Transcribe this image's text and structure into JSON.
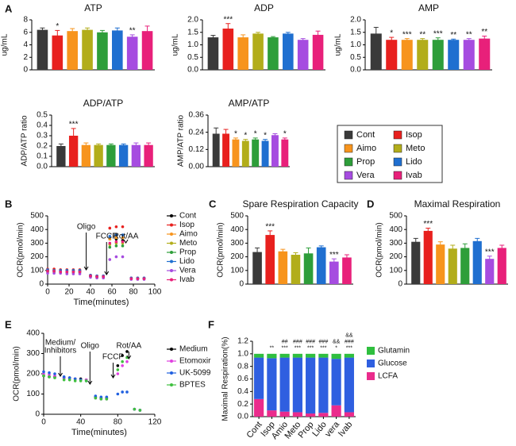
{
  "panel_labels": [
    "A",
    "B",
    "C",
    "D",
    "E",
    "F"
  ],
  "groups": {
    "names": [
      "Cont",
      "Isop",
      "Aimo",
      "Meto",
      "Prop",
      "Lido",
      "Vera",
      "Ivab"
    ],
    "colors": [
      "#3a3a3a",
      "#e8201e",
      "#f7941d",
      "#b2ad1a",
      "#2e9e3a",
      "#1f6fd0",
      "#a64ce0",
      "#e8207a"
    ]
  },
  "chart_data": [
    {
      "type": "bar",
      "title": "ATP",
      "ylabel": "ug/mL",
      "values": [
        6.4,
        5.5,
        6.2,
        6.4,
        6.0,
        6.3,
        5.3,
        6.2
      ],
      "errors": [
        0.3,
        0.8,
        0.4,
        0.3,
        0.3,
        0.4,
        0.3,
        0.8
      ],
      "stars": [
        null,
        "*",
        null,
        null,
        null,
        null,
        "**",
        null
      ],
      "ylim": [
        0,
        8
      ],
      "yticks": [
        0,
        2,
        4,
        6,
        8
      ]
    },
    {
      "type": "bar",
      "title": "ADP",
      "ylabel": "ug/mL",
      "values": [
        1.3,
        1.65,
        1.3,
        1.45,
        1.3,
        1.45,
        1.2,
        1.4
      ],
      "errors": [
        0.08,
        0.2,
        0.1,
        0.05,
        0.03,
        0.05,
        0.05,
        0.15
      ],
      "stars": [
        null,
        "***",
        null,
        null,
        null,
        null,
        null,
        null
      ],
      "ylim": [
        0,
        2
      ],
      "yticks": [
        {
          "value": 0,
          "label": "0.0"
        },
        0.5,
        {
          "value": 1,
          "label": "1.0"
        },
        1.5,
        {
          "value": 2,
          "label": "2.0"
        }
      ]
    },
    {
      "type": "bar",
      "title": "AMP",
      "ylabel": "ug/mL",
      "values": [
        1.45,
        1.2,
        1.2,
        1.2,
        1.2,
        1.2,
        1.2,
        1.25
      ],
      "errors": [
        0.25,
        0.1,
        0.05,
        0.05,
        0.08,
        0.03,
        0.05,
        0.1
      ],
      "stars": [
        null,
        "*",
        "***",
        "**",
        "***",
        "**",
        "**",
        "**"
      ],
      "ylim": [
        0,
        2
      ],
      "yticks": [
        {
          "value": 0,
          "label": "0.0"
        },
        0.5,
        {
          "value": 1,
          "label": "1.0"
        },
        1.5,
        {
          "value": 2,
          "label": "2.0"
        }
      ]
    },
    {
      "type": "bar",
      "title": "ADP/ATP",
      "ylabel": "ADP/ATP ratio",
      "values": [
        0.2,
        0.3,
        0.21,
        0.21,
        0.21,
        0.21,
        0.21,
        0.21
      ],
      "errors": [
        0.02,
        0.07,
        0.02,
        0.01,
        0.01,
        0.01,
        0.02,
        0.02
      ],
      "stars": [
        null,
        "***",
        null,
        null,
        null,
        null,
        null,
        null
      ],
      "ylim": [
        0,
        0.5
      ],
      "yticks": [
        {
          "value": 0,
          "label": "0.0"
        },
        0.1,
        0.2,
        0.3,
        0.4,
        0.5
      ]
    },
    {
      "type": "bar",
      "title": "AMP/ATP",
      "ylabel": "AMP/ATP ratio",
      "values": [
        0.23,
        0.23,
        0.19,
        0.18,
        0.19,
        0.18,
        0.22,
        0.19
      ],
      "errors": [
        0.04,
        0.03,
        0.01,
        0.01,
        0.01,
        0.01,
        0.01,
        0.01
      ],
      "stars": [
        null,
        null,
        "*",
        "*",
        "*",
        "*",
        null,
        "*"
      ],
      "ylim": [
        0,
        0.36
      ],
      "yticks": [
        {
          "value": 0,
          "label": "0.00"
        },
        0.12,
        0.24,
        0.36
      ]
    },
    {
      "type": "line",
      "xlabel": "Time(minutes)",
      "ylabel": "OCR(pmol/min)",
      "x": [
        0,
        6,
        12,
        18,
        24,
        30,
        40,
        46,
        52,
        58,
        64,
        70,
        78,
        84,
        90
      ],
      "series": [
        {
          "name": "Cont",
          "color": "#000000",
          "values": [
            100,
            100,
            95,
            95,
            95,
            95,
            60,
            55,
            55,
            330,
            330,
            320,
            40,
            40,
            40
          ]
        },
        {
          "name": "Isop",
          "color": "#e8201e",
          "values": [
            110,
            110,
            105,
            105,
            105,
            105,
            65,
            60,
            60,
            410,
            420,
            420,
            45,
            45,
            45
          ]
        },
        {
          "name": "Aimo",
          "color": "#f7941d",
          "values": [
            100,
            100,
            95,
            95,
            95,
            95,
            60,
            55,
            55,
            330,
            340,
            340,
            40,
            40,
            40
          ]
        },
        {
          "name": "Meto",
          "color": "#b2ad1a",
          "values": [
            95,
            90,
            90,
            90,
            90,
            90,
            55,
            55,
            55,
            290,
            300,
            300,
            40,
            40,
            40
          ]
        },
        {
          "name": "Prop",
          "color": "#2e9e3a",
          "values": [
            90,
            90,
            85,
            85,
            85,
            85,
            55,
            50,
            50,
            270,
            280,
            280,
            40,
            40,
            40
          ]
        },
        {
          "name": "Lido",
          "color": "#1f6fd0",
          "values": [
            105,
            100,
            100,
            100,
            100,
            100,
            65,
            60,
            60,
            350,
            360,
            360,
            45,
            45,
            45
          ]
        },
        {
          "name": "Vera",
          "color": "#a64ce0",
          "values": [
            80,
            80,
            80,
            75,
            75,
            75,
            50,
            45,
            45,
            180,
            200,
            200,
            35,
            35,
            35
          ]
        },
        {
          "name": "Ivab",
          "color": "#e8207a",
          "values": [
            95,
            95,
            90,
            90,
            90,
            90,
            60,
            55,
            55,
            300,
            310,
            310,
            40,
            40,
            40
          ]
        }
      ],
      "annotations": [
        {
          "label": "Oligo",
          "x": 36
        },
        {
          "label": "FCCP",
          "x": 55
        },
        {
          "label": "Rot/AA",
          "x": 73
        }
      ],
      "xlim": [
        0,
        100
      ],
      "ylim": [
        0,
        500
      ],
      "xticks": [
        0,
        20,
        40,
        60,
        80,
        100
      ],
      "yticks": [
        0,
        100,
        200,
        300,
        400,
        500
      ]
    },
    {
      "type": "bar",
      "title": "Spare Respiration Capacity",
      "ylabel": "OCR(pmol/min)",
      "values": [
        235,
        360,
        240,
        215,
        225,
        270,
        165,
        195
      ],
      "errors": [
        30,
        30,
        15,
        15,
        40,
        10,
        20,
        20
      ],
      "stars": [
        null,
        "***",
        null,
        null,
        null,
        null,
        "***",
        null
      ],
      "ylim": [
        0,
        500
      ],
      "yticks": [
        0,
        100,
        200,
        300,
        400,
        500
      ]
    },
    {
      "type": "bar",
      "title": "Maximal Respiration",
      "ylabel": "OCR(pmol/min)",
      "values": [
        310,
        390,
        290,
        260,
        265,
        315,
        185,
        265
      ],
      "errors": [
        25,
        20,
        20,
        25,
        30,
        20,
        20,
        20
      ],
      "stars": [
        null,
        "***",
        null,
        null,
        null,
        null,
        "***",
        null
      ],
      "ylim": [
        0,
        500
      ],
      "yticks": [
        0,
        100,
        200,
        300,
        400,
        500
      ]
    },
    {
      "type": "line",
      "xlabel": "Time(minutes)",
      "ylabel": "OCR(pmol/min)",
      "x": [
        0,
        6,
        12,
        22,
        28,
        34,
        40,
        46,
        56,
        62,
        68,
        80,
        85,
        90,
        98,
        104
      ],
      "series": [
        {
          "name": "Medium",
          "color": "#000000",
          "values": [
            190,
            185,
            185,
            180,
            180,
            175,
            175,
            170,
            85,
            80,
            80,
            240,
            290,
            310,
            25,
            20
          ]
        },
        {
          "name": "Etomoxir",
          "color": "#e040e0",
          "values": [
            200,
            195,
            190,
            180,
            175,
            175,
            170,
            170,
            80,
            75,
            75,
            200,
            240,
            260,
            25,
            20
          ]
        },
        {
          "name": "UK-5099",
          "color": "#2060e0",
          "values": [
            210,
            205,
            200,
            185,
            180,
            175,
            170,
            165,
            90,
            85,
            85,
            100,
            110,
            110,
            25,
            20
          ]
        },
        {
          "name": "BPTES",
          "color": "#40c040",
          "values": [
            190,
            185,
            180,
            170,
            170,
            165,
            165,
            165,
            80,
            75,
            75,
            220,
            260,
            280,
            25,
            20
          ]
        }
      ],
      "annotations": [
        {
          "label": [
            "Medium/",
            "Inhibitors"
          ],
          "x": 18
        },
        {
          "label": "Oligo",
          "x": 50
        },
        {
          "label": "FCCP",
          "x": 75
        },
        {
          "label": "Rot/AA",
          "x": 92
        }
      ],
      "xlim": [
        0,
        120
      ],
      "ylim": [
        0,
        400
      ],
      "xticks": [
        0,
        40,
        80,
        120
      ],
      "yticks": [
        0,
        100,
        200,
        300,
        400
      ]
    },
    {
      "type": "stacked_bar",
      "ylabel": "Maximal Respiration(%)",
      "categories": [
        "Cont",
        "Isop",
        "Amio",
        "Meto",
        "Prop",
        "Lido",
        "vera",
        "Ivab"
      ],
      "series": [
        {
          "name": "LCFA",
          "color": "#ea2b8c",
          "values": [
            0.28,
            0.1,
            0.08,
            0.07,
            0.05,
            0.06,
            0.18,
            0.07
          ]
        },
        {
          "name": "Glucose",
          "color": "#2f5fe0",
          "values": [
            0.66,
            0.83,
            0.86,
            0.87,
            0.89,
            0.88,
            0.74,
            0.87
          ]
        },
        {
          "name": "Glutamin",
          "color": "#2fbf3f",
          "values": [
            0.06,
            0.07,
            0.06,
            0.06,
            0.06,
            0.06,
            0.08,
            0.06
          ]
        }
      ],
      "annotations": [
        [],
        [
          "**"
        ],
        [
          "##",
          "***"
        ],
        [
          "###",
          "***"
        ],
        [
          "###",
          "***"
        ],
        [
          "###",
          "***"
        ],
        [
          "&&",
          "*"
        ],
        [
          "&&",
          "###",
          "***"
        ]
      ],
      "ylim": [
        0,
        1.2
      ],
      "yticks": [
        {
          "value": 0,
          "label": "0.0"
        },
        0.2,
        0.4,
        0.6,
        0.8,
        {
          "value": 1,
          "label": "1.0"
        },
        1.2
      ]
    }
  ]
}
